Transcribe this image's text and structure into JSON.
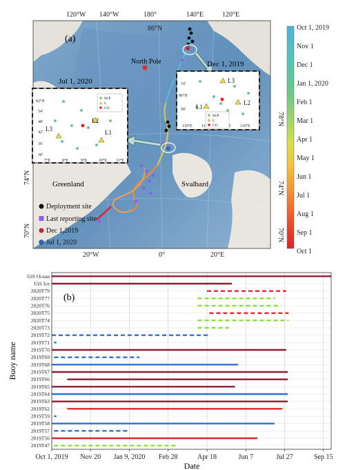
{
  "map": {
    "panel_label": "(a)",
    "top_lon_labels": [
      "120°W",
      "140°W",
      "180°",
      "140°E",
      "120°E"
    ],
    "top_lat_label": "86°N",
    "bottom_lon_labels": [
      "20°W",
      "0°",
      "20°E"
    ],
    "left_lat_labels": [
      "74°N",
      "70°N"
    ],
    "right_lat_labels": [
      "78°N",
      "74°N",
      "70°N"
    ],
    "place_labels": {
      "north_pole": "North Pole",
      "greenland": "Greenland",
      "svalbard": "Svalbard"
    },
    "legend": [
      {
        "label": "Deployment site",
        "color": "#111111",
        "shape": "circle"
      },
      {
        "label": "Last reporting site",
        "color": "#8a5cf0",
        "shape": "square"
      },
      {
        "label": "Dec 1,2019",
        "color": "#c1272d",
        "shape": "circle"
      },
      {
        "label": "Jul 1, 2020",
        "color": "#3a62c4",
        "shape": "circle"
      }
    ],
    "colorbar": {
      "labels": [
        "Oct 1, 2019",
        "Nov 1",
        "Dec 1",
        "Jan 1, 2020",
        "Feb 1",
        "Mar 1",
        "Apr 1",
        "May 1",
        "Jun 1",
        "Jul 1",
        "Aug 1",
        "Sep 1",
        "Oct 1"
      ]
    },
    "inset_dec": {
      "title": "Dec 1, 2019",
      "lat_labels": [
        "10'",
        "86°N",
        "50'"
      ],
      "lon_labels": [
        "110°E",
        "112°E",
        "114°E",
        "116°E"
      ],
      "site_labels": [
        "L3",
        "L1",
        "L2"
      ],
      "legend": [
        "M/P",
        "L",
        "CO"
      ]
    },
    "inset_jul": {
      "title": "Jul 1, 2020",
      "lat_labels": [
        "82°N",
        "54'",
        "48'",
        "42'",
        "36'",
        "30'"
      ],
      "lon_labels": [
        "7°E",
        "8°E",
        "9°E",
        "10°E",
        "11°E"
      ],
      "site_labels": [
        "L2",
        "L3",
        "L1"
      ],
      "legend": [
        "M/P",
        "L",
        "CO"
      ]
    }
  },
  "chart_data": {
    "type": "timeline",
    "panel_label": "(b)",
    "xlabel": "Date",
    "ylabel": "Buoy name",
    "x_ticks": [
      "Oct 1, 2019",
      "Nov 20",
      "Jan 9, 2020",
      "Feb 28",
      "Apr 18",
      "Jun 7",
      "Jul 27",
      "Sep 15"
    ],
    "x_tick_days": [
      0,
      50,
      100,
      150,
      200,
      250,
      300,
      350
    ],
    "x_range_days": [
      0,
      360
    ],
    "grid": true,
    "style_colors": {
      "maroon": "#8b1e2f",
      "red": "#e0262b",
      "blue": "#2e6fd6",
      "green": "#8ce03a"
    },
    "buoys": [
      {
        "name": "UiS Ocean",
        "start": 0,
        "end": 360,
        "style": "maroon",
        "dashed": false
      },
      {
        "name": "UiS Ice",
        "start": 0,
        "end": 232,
        "style": "maroon",
        "dashed": false
      },
      {
        "name": "2020T79",
        "start": 200,
        "end": 302,
        "style": "red",
        "dashed": true
      },
      {
        "name": "2020T77",
        "start": 188,
        "end": 288,
        "style": "green",
        "dashed": true
      },
      {
        "name": "2020T76",
        "start": 188,
        "end": 295,
        "style": "green",
        "dashed": true
      },
      {
        "name": "2020T75",
        "start": 203,
        "end": 305,
        "style": "red",
        "dashed": true
      },
      {
        "name": "2020T74",
        "start": 188,
        "end": 305,
        "style": "green",
        "dashed": true
      },
      {
        "name": "2020T73",
        "start": 188,
        "end": 228,
        "style": "green",
        "dashed": true
      },
      {
        "name": "2019T72",
        "start": 0,
        "end": 204,
        "style": "blue",
        "dashed": true
      },
      {
        "name": "2019T71",
        "start": 3,
        "end": 6,
        "style": "blue",
        "dashed": false
      },
      {
        "name": "2019T70",
        "start": 0,
        "end": 302,
        "style": "maroon",
        "dashed": false
      },
      {
        "name": "2019T69",
        "start": 3,
        "end": 113,
        "style": "blue",
        "dashed": true
      },
      {
        "name": "2019T68",
        "start": 0,
        "end": 240,
        "style": "blue",
        "dashed": false
      },
      {
        "name": "2019T67",
        "start": 0,
        "end": 304,
        "style": "maroon",
        "dashed": false
      },
      {
        "name": "2019T66",
        "start": 20,
        "end": 304,
        "style": "maroon",
        "dashed": false
      },
      {
        "name": "2019T65",
        "start": 0,
        "end": 236,
        "style": "maroon",
        "dashed": false
      },
      {
        "name": "2019T64",
        "start": 0,
        "end": 304,
        "style": "blue",
        "dashed": false
      },
      {
        "name": "2019T63",
        "start": 0,
        "end": 304,
        "style": "maroon",
        "dashed": false
      },
      {
        "name": "2019T62",
        "start": 20,
        "end": 297,
        "style": "red",
        "dashed": false
      },
      {
        "name": "2019T59",
        "start": 3,
        "end": 6,
        "style": "blue",
        "dashed": false
      },
      {
        "name": "2019T58",
        "start": 0,
        "end": 287,
        "style": "blue",
        "dashed": false
      },
      {
        "name": "2019T57",
        "start": 3,
        "end": 100,
        "style": "blue",
        "dashed": true
      },
      {
        "name": "2019T56",
        "start": 0,
        "end": 265,
        "style": "red",
        "dashed": false
      },
      {
        "name": "2019T47",
        "start": 3,
        "end": 160,
        "style": "green",
        "dashed": true
      }
    ]
  }
}
